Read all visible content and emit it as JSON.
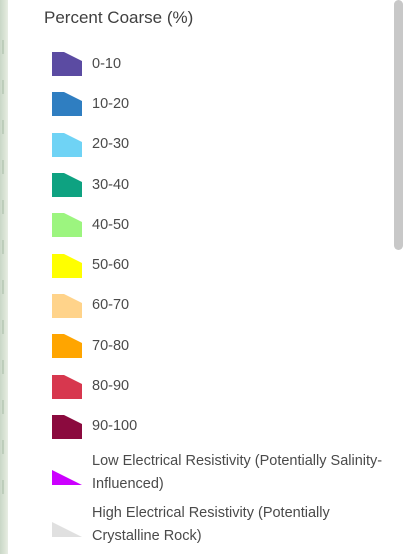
{
  "legend": {
    "title": "Percent Coarse (%)",
    "items": [
      {
        "label": "0-10",
        "color": "#5b4ba2",
        "shape": "trapezoid"
      },
      {
        "label": "10-20",
        "color": "#2f7ec1",
        "shape": "trapezoid"
      },
      {
        "label": "20-30",
        "color": "#6fd3f5",
        "shape": "trapezoid"
      },
      {
        "label": "30-40",
        "color": "#0ea281",
        "shape": "trapezoid"
      },
      {
        "label": "40-50",
        "color": "#9cf57f",
        "shape": "trapezoid"
      },
      {
        "label": "50-60",
        "color": "#ffff00",
        "shape": "trapezoid"
      },
      {
        "label": "60-70",
        "color": "#ffd38a",
        "shape": "trapezoid"
      },
      {
        "label": "70-80",
        "color": "#ffa500",
        "shape": "trapezoid"
      },
      {
        "label": "80-90",
        "color": "#d7374e",
        "shape": "trapezoid"
      },
      {
        "label": "90-100",
        "color": "#8b0a3e",
        "shape": "trapezoid"
      },
      {
        "label": "Low Electrical Resistivity (Potentially Salinity-Influenced)",
        "color": "#cc00ff",
        "shape": "triangle"
      },
      {
        "label": "High Electrical Resistivity (Potentially Crystalline Rock)",
        "color": "#e0e0e0",
        "shape": "triangle"
      }
    ]
  }
}
